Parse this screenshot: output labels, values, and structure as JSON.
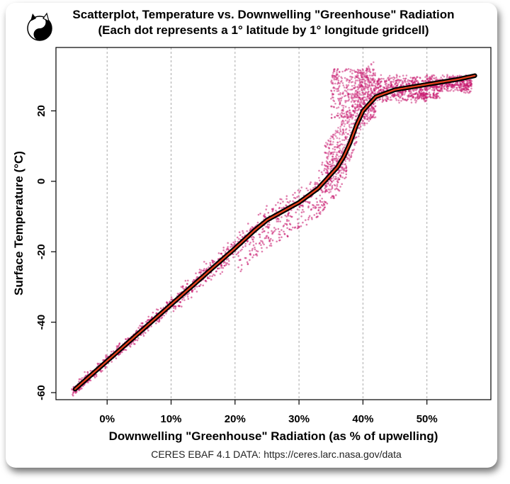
{
  "chart_data": {
    "type": "scatter",
    "title": "Scatterplot, Temperature vs. Downwelling \"Greenhouse\" Radiation",
    "subtitle": "(Each dot represents a 1° latitude by 1° longitude gridcell)",
    "xlabel": "Downwelling \"Greenhouse\" Radiation (as % of upwelling)",
    "ylabel": "Surface Temperature (°C)",
    "caption": "CERES EBAF 4.1 DATA: https://ceres.larc.nasa.gov/data",
    "xlim": [
      -8,
      60
    ],
    "ylim": [
      -62,
      38
    ],
    "x_ticks": [
      0,
      10,
      20,
      30,
      40,
      50
    ],
    "x_tick_labels": [
      "0%",
      "10%",
      "20%",
      "30%",
      "40%",
      "50%"
    ],
    "y_ticks": [
      -60,
      -40,
      -20,
      0,
      20
    ],
    "y_tick_labels": [
      "-60",
      "-40",
      "-20",
      "0",
      "20"
    ],
    "grid": "vertical-dashed",
    "colors": {
      "points": "#c8186e",
      "trend_outer": "#000000",
      "trend_inner": "#e8401c"
    },
    "trend_line": {
      "x": [
        -5,
        0,
        5,
        10,
        15,
        20,
        23,
        25,
        28,
        30,
        33,
        36,
        37,
        38,
        39,
        40,
        42,
        45,
        50,
        55,
        57.5
      ],
      "y": [
        -59,
        -51,
        -43,
        -35,
        -27,
        -19,
        -14,
        -11,
        -8,
        -6,
        -2,
        4,
        7,
        11,
        16,
        20,
        24,
        26,
        27.5,
        29,
        30
      ]
    },
    "point_clouds": [
      {
        "x_range": [
          -5,
          15
        ],
        "center": "trend",
        "spread": 1.5
      },
      {
        "x_range": [
          10,
          24
        ],
        "center": "trend",
        "spread": 2.5
      },
      {
        "x_range": [
          22,
          36
        ],
        "center": "trend",
        "spread": 3
      },
      {
        "x_range": [
          36,
          42
        ],
        "center": "trend",
        "spread": 5
      },
      {
        "x_range": [
          35,
          57
        ],
        "center": "plateau",
        "y_range": [
          20,
          33
        ]
      }
    ],
    "icon": "yin-yang-cat-icon"
  }
}
